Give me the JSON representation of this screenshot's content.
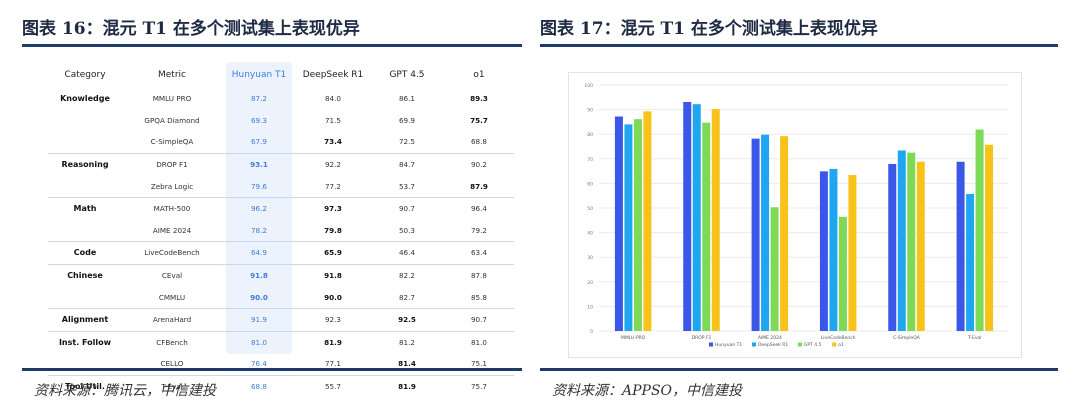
{
  "left": {
    "title": "图表 16：混元 T1 在多个测试集上表现优异",
    "source": "资料来源：腾讯云，中信建投",
    "table": {
      "headers": [
        "Category",
        "Metric",
        "Hunyuan T1",
        "DeepSeek R1",
        "GPT 4.5",
        "o1"
      ],
      "rows": [
        {
          "category": "Knowledge",
          "metric": "MMLU PRO",
          "values": [
            "87.2",
            "84.0",
            "86.1",
            "89.3"
          ],
          "bold": [
            3
          ],
          "group_end": false
        },
        {
          "category": "",
          "metric": "GPQA Diamond",
          "values": [
            "69.3",
            "71.5",
            "69.9",
            "75.7"
          ],
          "bold": [
            3
          ],
          "group_end": false
        },
        {
          "category": "",
          "metric": "C-SimpleQA",
          "values": [
            "67.9",
            "73.4",
            "72.5",
            "68.8"
          ],
          "bold": [
            1
          ],
          "group_end": true
        },
        {
          "category": "Reasoning",
          "metric": "DROP F1",
          "values": [
            "93.1",
            "92.2",
            "84.7",
            "90.2"
          ],
          "bold": [
            0
          ],
          "group_end": false
        },
        {
          "category": "",
          "metric": "Zebra Logic",
          "values": [
            "79.6",
            "77.2",
            "53.7",
            "87.9"
          ],
          "bold": [
            3
          ],
          "group_end": true
        },
        {
          "category": "Math",
          "metric": "MATH-500",
          "values": [
            "96.2",
            "97.3",
            "90.7",
            "96.4"
          ],
          "bold": [
            1
          ],
          "group_end": false
        },
        {
          "category": "",
          "metric": "AIME 2024",
          "values": [
            "78.2",
            "79.8",
            "50.3",
            "79.2"
          ],
          "bold": [
            1
          ],
          "group_end": true
        },
        {
          "category": "Code",
          "metric": "LiveCodeBench",
          "values": [
            "64.9",
            "65.9",
            "46.4",
            "63.4"
          ],
          "bold": [
            1
          ],
          "group_end": true
        },
        {
          "category": "Chinese",
          "metric": "CEval",
          "values": [
            "91.8",
            "91.8",
            "82.2",
            "87.8"
          ],
          "bold": [
            0,
            1
          ],
          "group_end": false
        },
        {
          "category": "",
          "metric": "CMMLU",
          "values": [
            "90.0",
            "90.0",
            "82.7",
            "85.8"
          ],
          "bold": [
            0,
            1
          ],
          "group_end": true
        },
        {
          "category": "Alignment",
          "metric": "ArenaHard",
          "values": [
            "91.9",
            "92.3",
            "92.5",
            "90.7"
          ],
          "bold": [
            2
          ],
          "group_end": true
        },
        {
          "category": "Inst. Follow",
          "metric": "CFBench",
          "values": [
            "81.0",
            "81.9",
            "81.2",
            "81.0"
          ],
          "bold": [
            1
          ],
          "group_end": false
        },
        {
          "category": "",
          "metric": "CELLO",
          "values": [
            "76.4",
            "77.1",
            "81.4",
            "75.1"
          ],
          "bold": [
            2
          ],
          "group_end": true
        },
        {
          "category": "Tool Util.",
          "metric": "T-Eval",
          "values": [
            "68.8",
            "55.7",
            "81.9",
            "75.7"
          ],
          "bold": [
            2
          ],
          "group_end": false
        }
      ]
    }
  },
  "right": {
    "title": "图表 17：混元 T1 在多个测试集上表现优异",
    "source": "资料来源：APPSO，中信建投"
  },
  "chart_data": {
    "type": "bar",
    "categories": [
      "MMLU-PRO",
      "DROP F1",
      "AIME 2024",
      "LiveCodeBench",
      "C-SimpleQA",
      "T-Eval"
    ],
    "series": [
      {
        "name": "Hunyuan T1",
        "color": "#3a57e8",
        "values": [
          87.2,
          93.1,
          78.2,
          64.9,
          67.9,
          68.8
        ]
      },
      {
        "name": "DeepSeek R1",
        "color": "#1ea7f0",
        "values": [
          84.0,
          92.2,
          79.8,
          65.9,
          73.4,
          55.7
        ]
      },
      {
        "name": "GPT 4.5",
        "color": "#7ed957",
        "values": [
          86.1,
          84.7,
          50.3,
          46.4,
          72.5,
          81.9
        ]
      },
      {
        "name": "o1",
        "color": "#f7c21a",
        "values": [
          89.3,
          90.2,
          79.2,
          63.4,
          68.8,
          75.7
        ]
      }
    ],
    "yticks": [
      0,
      10,
      20,
      30,
      40,
      50,
      60,
      70,
      80,
      90,
      100
    ],
    "ylim": [
      0,
      100
    ],
    "grid": true,
    "legend": "bottom"
  }
}
